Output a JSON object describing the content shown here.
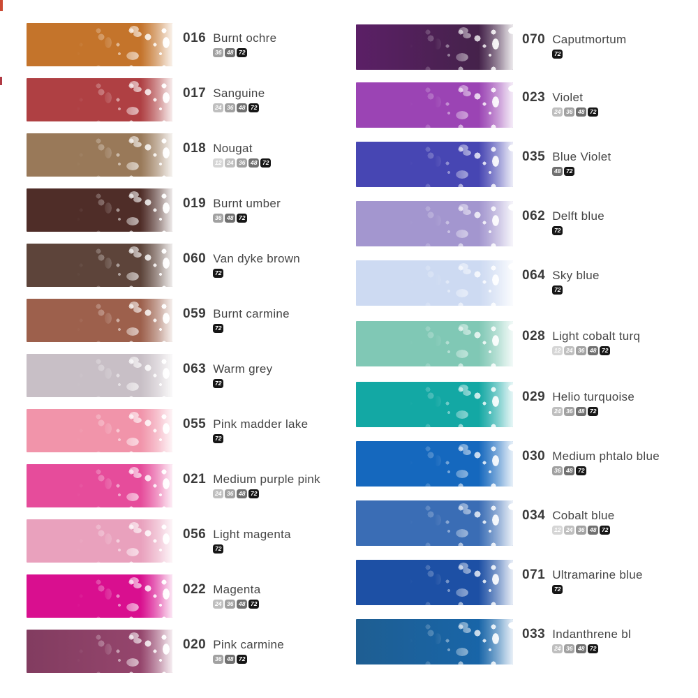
{
  "page": {
    "background": "#ffffff"
  },
  "badge_colors": {
    "12": "#d6d6d6",
    "24": "#bfbfbf",
    "36": "#a1a1a1",
    "48": "#707070",
    "72": "#161616"
  },
  "columns": {
    "left": [
      {
        "code": "016",
        "name": "Burnt ochre",
        "sets": [
          "36",
          "48",
          "72"
        ],
        "color": "#c4742b"
      },
      {
        "code": "017",
        "name": "Sanguine",
        "sets": [
          "24",
          "36",
          "48",
          "72"
        ],
        "color": "#af4043"
      },
      {
        "code": "018",
        "name": "Nougat",
        "sets": [
          "12",
          "24",
          "36",
          "48",
          "72"
        ],
        "color": "#997959"
      },
      {
        "code": "019",
        "name": "Burnt umber",
        "sets": [
          "36",
          "48",
          "72"
        ],
        "color": "#4f2d28"
      },
      {
        "code": "060",
        "name": "Van dyke brown",
        "sets": [
          "72"
        ],
        "color": "#5d443a"
      },
      {
        "code": "059",
        "name": "Burnt carmine",
        "sets": [
          "72"
        ],
        "color": "#9d604c"
      },
      {
        "code": "063",
        "name": "Warm grey",
        "sets": [
          "72"
        ],
        "color": "#c8bfc6"
      },
      {
        "code": "055",
        "name": "Pink madder lake",
        "sets": [
          "72"
        ],
        "color": "#f194aa"
      },
      {
        "code": "021",
        "name": "Medium purple pink",
        "sets": [
          "24",
          "36",
          "48",
          "72"
        ],
        "color": "#e64c9b"
      },
      {
        "code": "056",
        "name": "Light magenta",
        "sets": [
          "72"
        ],
        "color": "#e9a1bd"
      },
      {
        "code": "022",
        "name": "Magenta",
        "sets": [
          "24",
          "36",
          "48",
          "72"
        ],
        "color": "#d90f8f"
      },
      {
        "code": "020",
        "name": "Pink carmine",
        "sets": [
          "36",
          "48",
          "72"
        ],
        "color": "#823c60",
        "color2": "#9a4870"
      }
    ],
    "right": [
      {
        "code": "070",
        "name": "Caputmortum",
        "sets": [
          "72"
        ],
        "color": "#5b1f66",
        "color2": "#3f2343"
      },
      {
        "code": "023",
        "name": "Violet",
        "sets": [
          "24",
          "36",
          "48",
          "72"
        ],
        "color": "#9b44b4"
      },
      {
        "code": "035",
        "name": "Blue Violet",
        "sets": [
          "48",
          "72"
        ],
        "color": "#4746b3"
      },
      {
        "code": "062",
        "name": "Delft blue",
        "sets": [
          "72"
        ],
        "color": "#a396cf"
      },
      {
        "code": "064",
        "name": "Sky blue",
        "sets": [
          "72"
        ],
        "color": "#cddaf2"
      },
      {
        "code": "028",
        "name": "Light cobalt turq",
        "sets": [
          "12",
          "24",
          "36",
          "48",
          "72"
        ],
        "color": "#80c8b5"
      },
      {
        "code": "029",
        "name": "Helio turquoise",
        "sets": [
          "24",
          "36",
          "48",
          "72"
        ],
        "color": "#13a8a4"
      },
      {
        "code": "030",
        "name": "Medium phtalo blue",
        "sets": [
          "36",
          "48",
          "72"
        ],
        "color": "#1568be"
      },
      {
        "code": "034",
        "name": "Cobalt blue",
        "sets": [
          "12",
          "24",
          "36",
          "48",
          "72"
        ],
        "color": "#3a6db5"
      },
      {
        "code": "071",
        "name": "Ultramarine blue",
        "sets": [
          "72"
        ],
        "color": "#1d50a5"
      },
      {
        "code": "033",
        "name": "Indanthrene bl",
        "sets": [
          "24",
          "36",
          "48",
          "72"
        ],
        "color": "#1e5e92",
        "color2": "#1767ae"
      }
    ]
  },
  "artifacts": [
    {
      "name": "scan-mark-top-left",
      "color": "#cc4a33"
    },
    {
      "name": "scan-mark-left-edge",
      "color": "#b03a44"
    }
  ]
}
